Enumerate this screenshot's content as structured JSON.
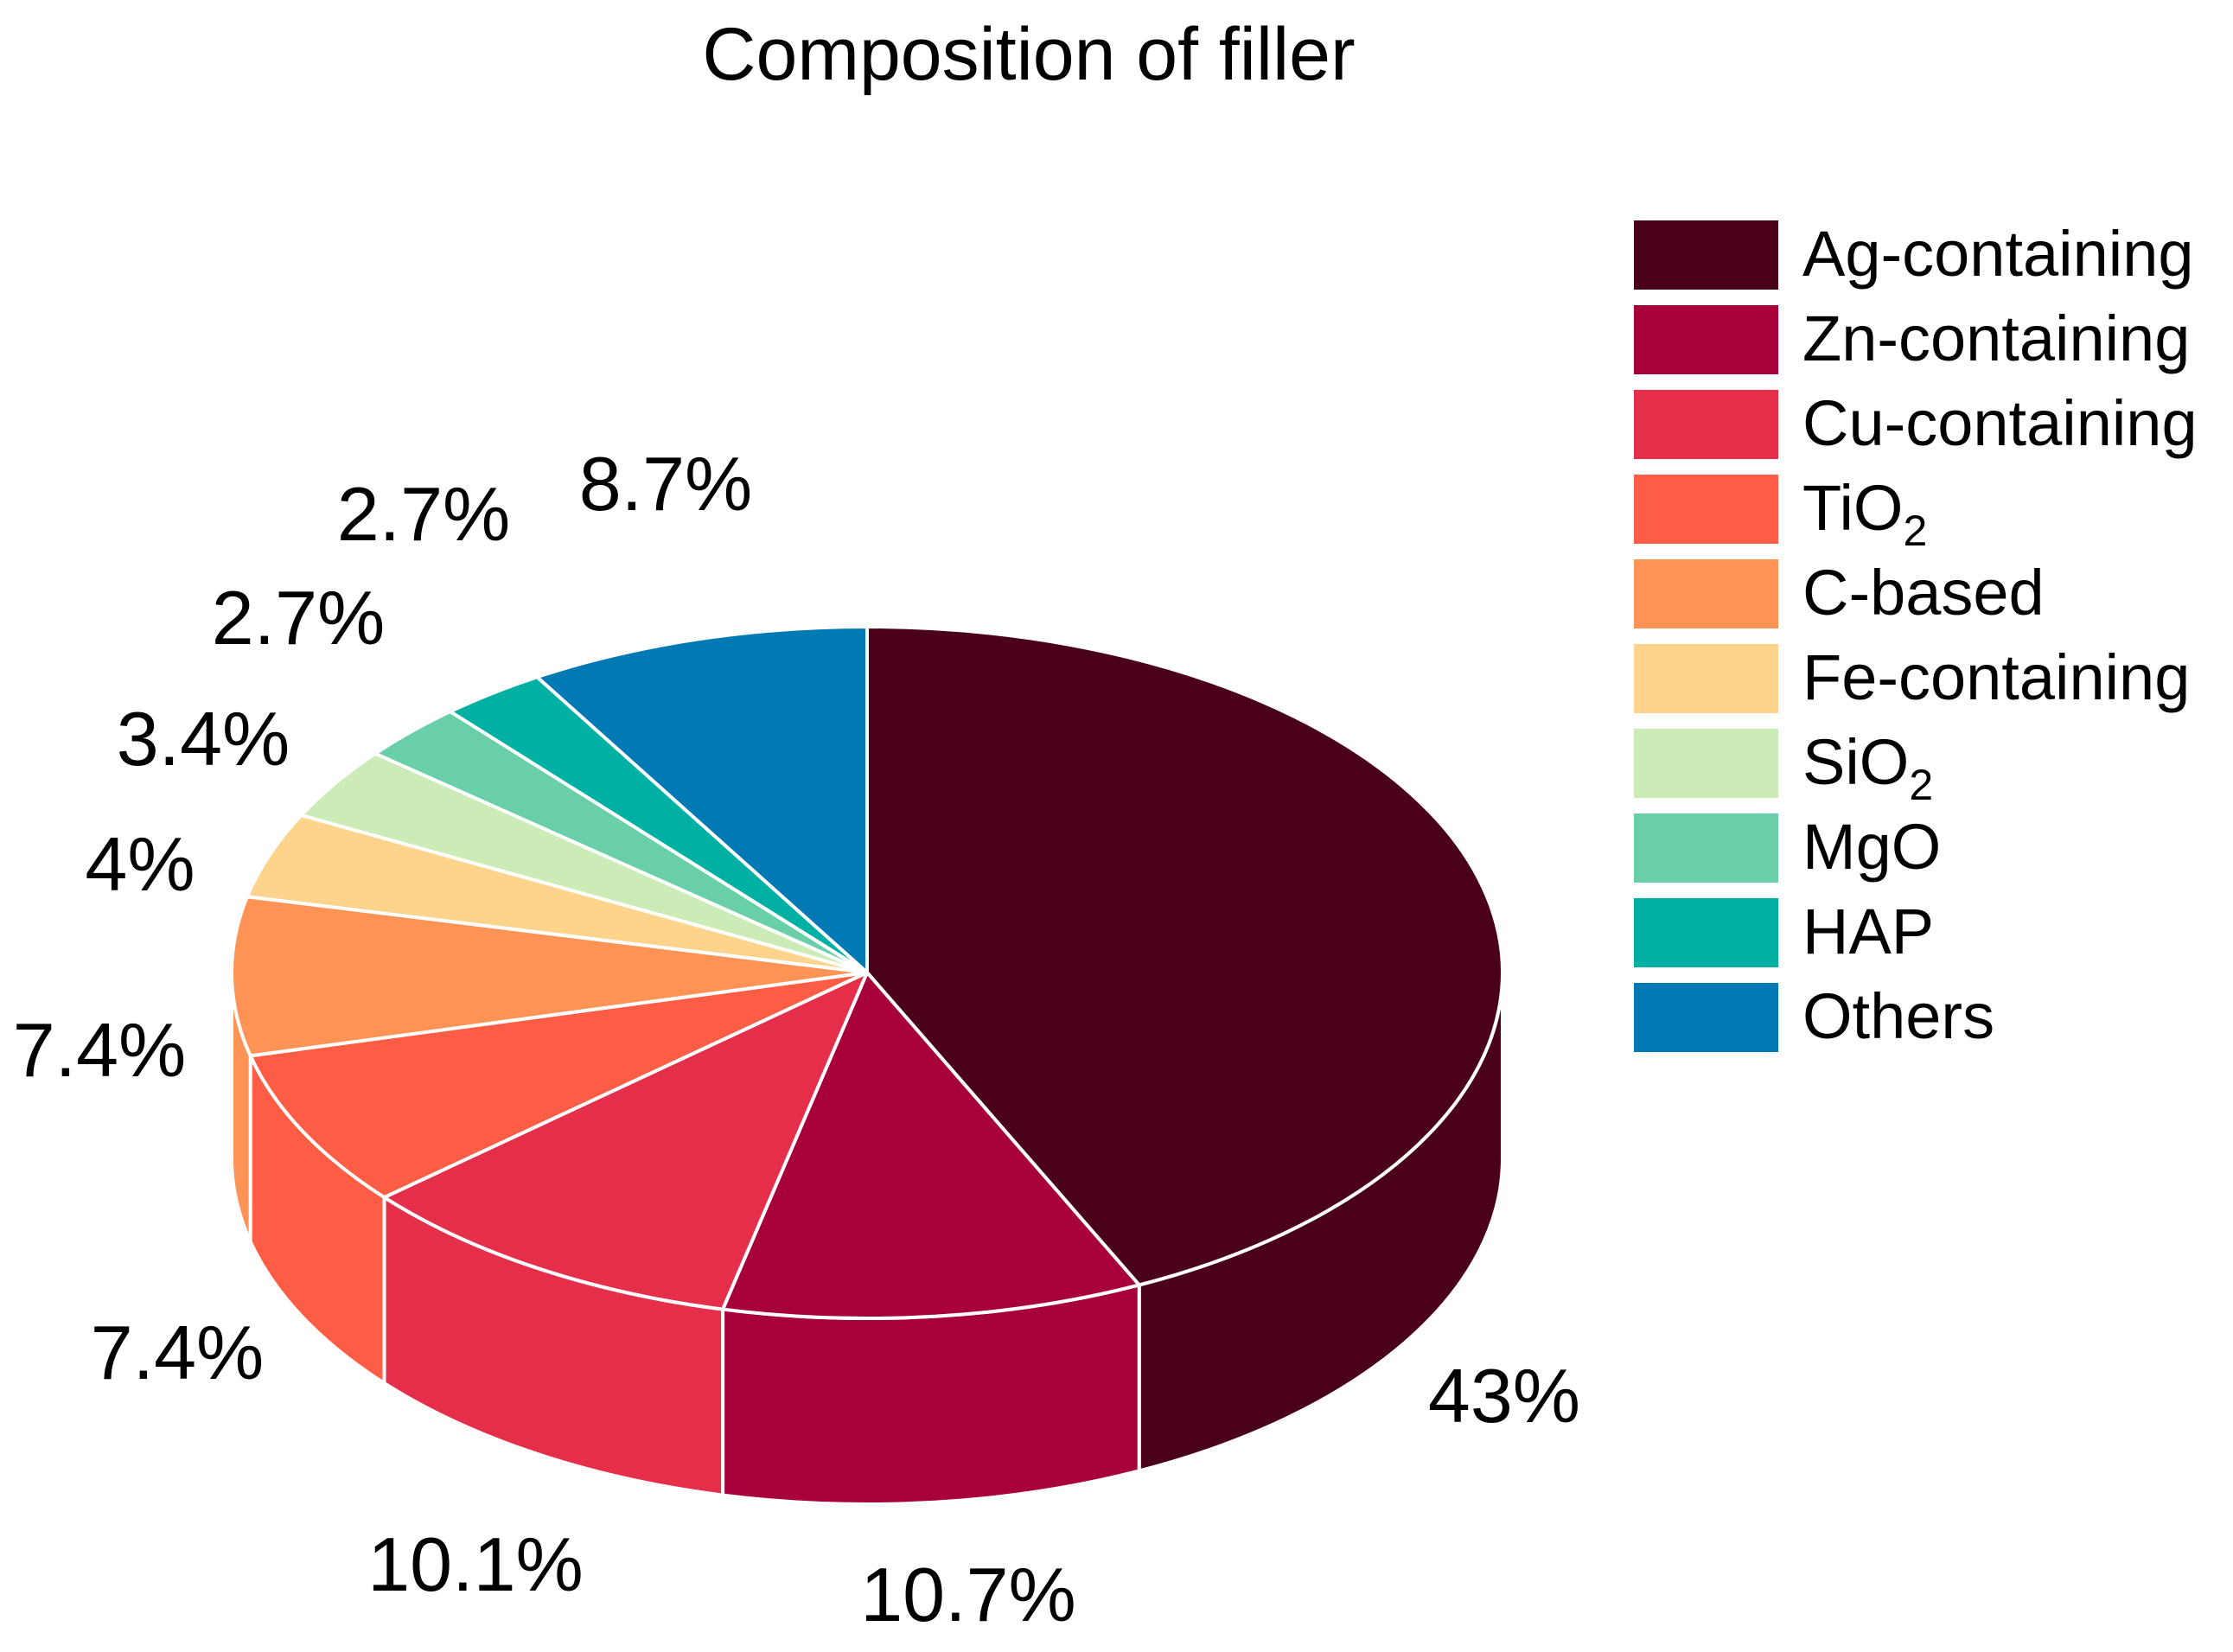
{
  "chart_data": {
    "type": "pie",
    "title": "Composition of filler",
    "categories": [
      "Ag-containing",
      "Zn-containing",
      "Cu-containing",
      "TiO2",
      "C-based",
      "Fe-containing",
      "SiO2",
      "MgO",
      "HAP",
      "Others"
    ],
    "values": [
      43,
      10.7,
      10.1,
      7.4,
      7.4,
      4,
      3.4,
      2.7,
      2.7,
      8.7
    ],
    "value_labels": [
      "43%",
      "10.7%",
      "10.1%",
      "7.4%",
      "7.4%",
      "4%",
      "3.4%",
      "2.7%",
      "2.7%",
      "8.7%"
    ],
    "legend": [
      {
        "label": "Ag-containing"
      },
      {
        "label": "Zn-containing"
      },
      {
        "label": "Cu-containing"
      },
      {
        "label": "TiO",
        "sub": "2"
      },
      {
        "label": "C-based"
      },
      {
        "label": "Fe-containing"
      },
      {
        "label": "SiO",
        "sub": "2"
      },
      {
        "label": "MgO"
      },
      {
        "label": "HAP"
      },
      {
        "label": "Others"
      }
    ],
    "colors": [
      "#4a0018",
      "#a8003a",
      "#e52e4a",
      "#fd5d45",
      "#fd9354",
      "#fed48c",
      "#cbecb6",
      "#69cfa8",
      "#00b0a2",
      "#0079b5"
    ],
    "legend_position": "right",
    "style": "3d-pie"
  }
}
